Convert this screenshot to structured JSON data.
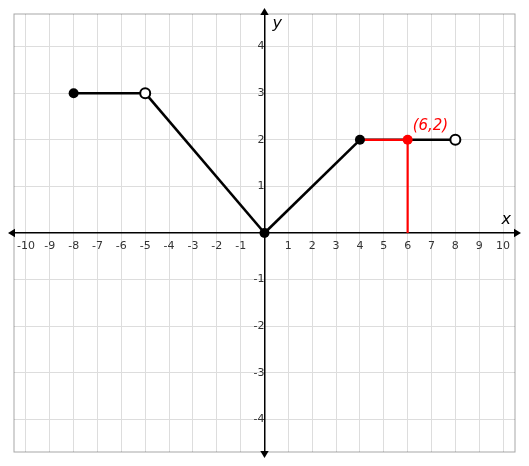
{
  "chart_data": {
    "type": "line",
    "xlabel": "x",
    "ylabel": "y",
    "xlim": [
      -10.5,
      10.5
    ],
    "ylim": [
      -4.7,
      4.7
    ],
    "xticks": [
      -10,
      -9,
      -8,
      -7,
      -6,
      -5,
      -4,
      -3,
      -2,
      -1,
      1,
      2,
      3,
      4,
      5,
      6,
      7,
      8,
      9,
      10
    ],
    "yticks": [
      -4,
      -3,
      -2,
      -1,
      1,
      2,
      3,
      4
    ],
    "grid": true,
    "series": [
      {
        "x": [
          -8,
          -5
        ],
        "values": [
          3,
          3
        ],
        "color": "black"
      },
      {
        "x": [
          -5,
          0
        ],
        "values": [
          3,
          0
        ],
        "color": "black"
      },
      {
        "x": [
          0,
          4
        ],
        "values": [
          0,
          2
        ],
        "color": "black"
      },
      {
        "x": [
          4,
          8
        ],
        "values": [
          2,
          2
        ],
        "color": "black"
      },
      {
        "x": [
          4,
          6
        ],
        "values": [
          2,
          2
        ],
        "color": "red"
      },
      {
        "x": [
          6,
          6
        ],
        "values": [
          2,
          0
        ],
        "color": "red"
      },
      {
        "type": "scatter",
        "x": [
          -8,
          0,
          4
        ],
        "values": [
          3,
          0,
          2
        ],
        "color": "black",
        "marker": "circle"
      },
      {
        "type": "scatter",
        "x": [
          -5,
          8
        ],
        "values": [
          3,
          2
        ],
        "color": "black",
        "marker": "open circle"
      },
      {
        "type": "scatter",
        "x": [
          6
        ],
        "values": [
          2
        ],
        "color": "red",
        "marker": "circle"
      }
    ],
    "annotations": [
      {
        "text": "(6,2)",
        "x": 6,
        "y": 2,
        "color": "red"
      }
    ]
  }
}
